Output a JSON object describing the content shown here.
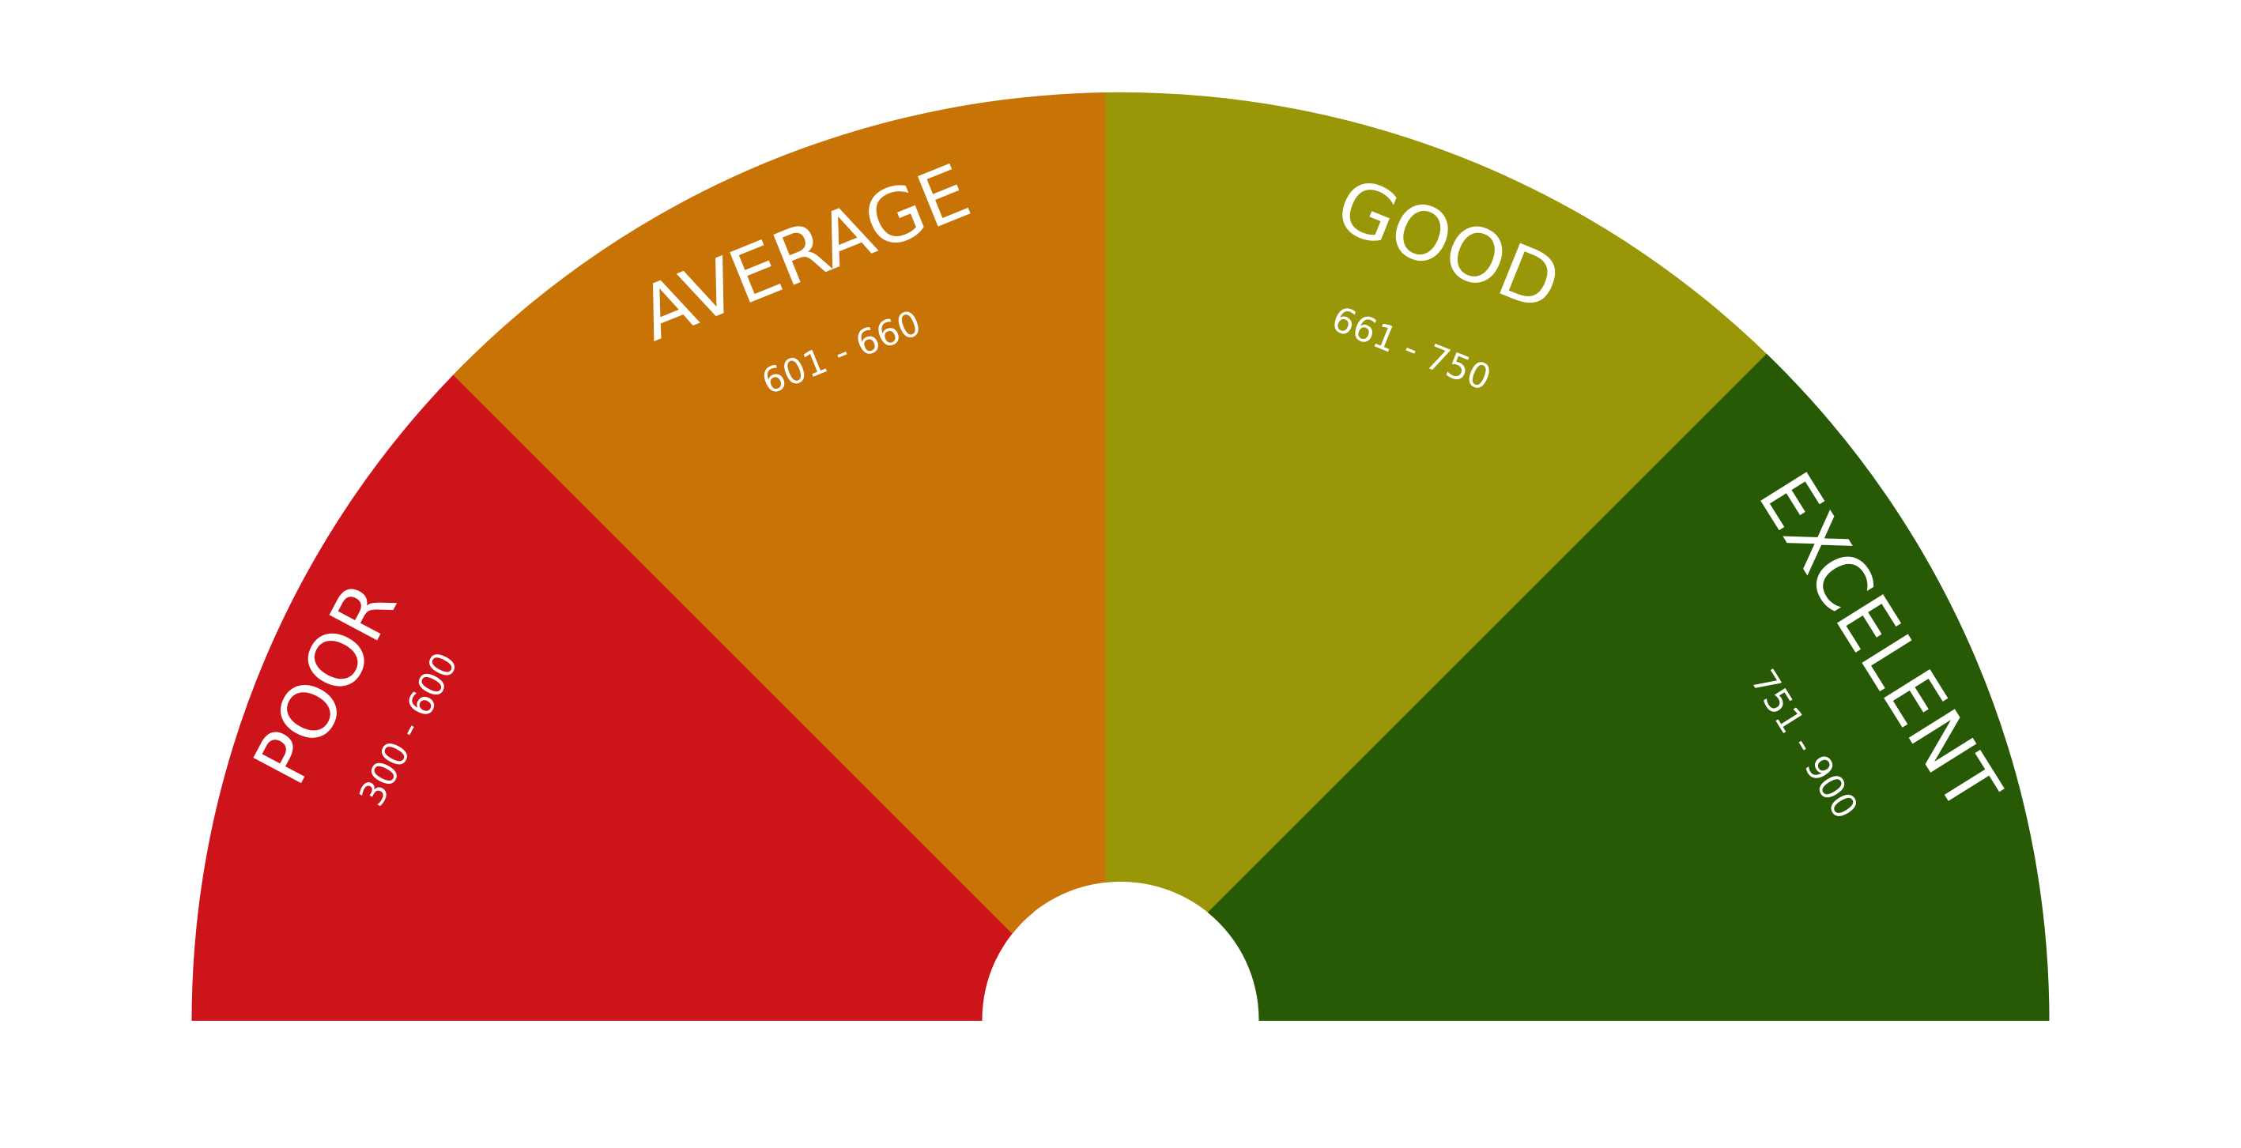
{
  "gauge": {
    "segments": [
      {
        "label": "POOR",
        "range": "300 - 600",
        "color": "#cd141b"
      },
      {
        "label": "AVERAGE",
        "range": "601 - 660",
        "color": "#c77306"
      },
      {
        "label": "GOOD",
        "range": "661 - 750",
        "color": "#999607"
      },
      {
        "label": "EXCELENT",
        "range": "751 - 900",
        "color": "#285a06"
      }
    ]
  }
}
